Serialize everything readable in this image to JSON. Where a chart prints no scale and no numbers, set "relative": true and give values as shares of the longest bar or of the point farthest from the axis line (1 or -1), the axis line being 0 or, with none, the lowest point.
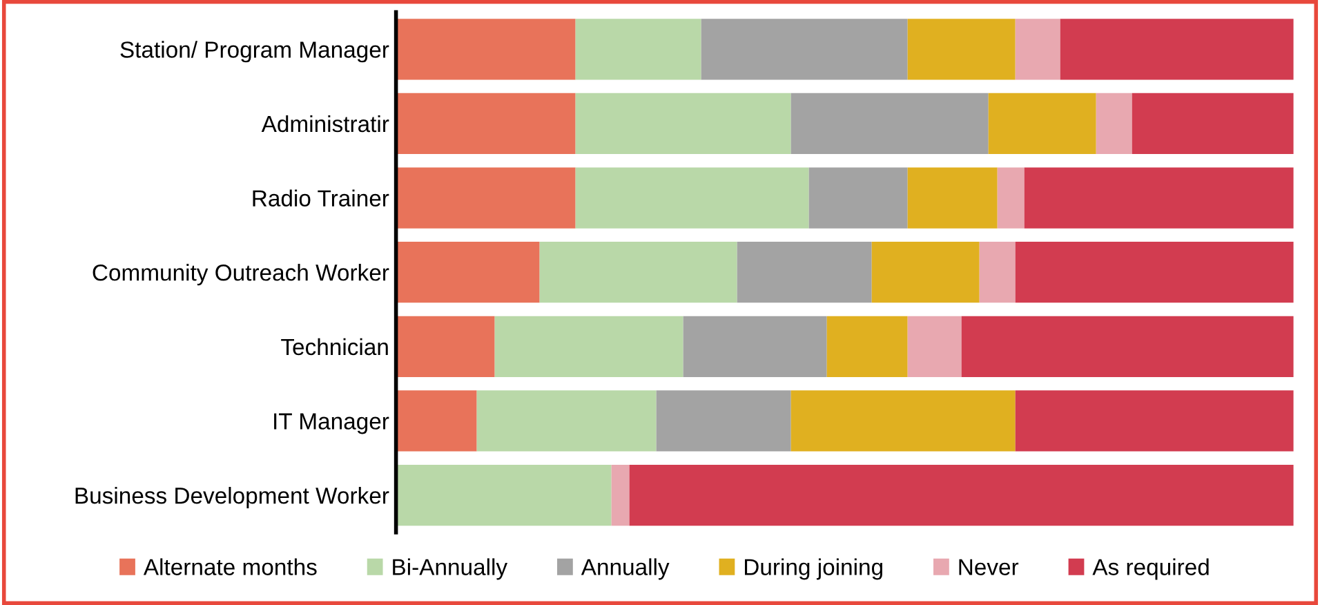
{
  "chart_data": {
    "type": "bar",
    "orientation": "horizontal",
    "stacked": true,
    "relative": true,
    "legend": "bottom",
    "grid": false,
    "categories": [
      "Station/ Program Manager",
      "Administratir",
      "Radio Trainer",
      "Community Outreach Worker",
      "Technician",
      "IT Manager",
      "Business Development Worker"
    ],
    "series": [
      {
        "name": "Alternate months",
        "color": "#e8735a",
        "values": [
          0.2,
          0.2,
          0.2,
          0.16,
          0.11,
          0.09,
          0
        ]
      },
      {
        "name": "Bi-Annually",
        "color": "#b9d8a8",
        "values": [
          0.14,
          0.24,
          0.26,
          0.22,
          0.21,
          0.2,
          0.24
        ]
      },
      {
        "name": "Annually",
        "color": "#a3a3a3",
        "values": [
          0.23,
          0.22,
          0.11,
          0.15,
          0.16,
          0.15,
          0
        ]
      },
      {
        "name": "During joining",
        "color": "#e0b020",
        "values": [
          0.12,
          0.12,
          0.1,
          0.12,
          0.09,
          0.25,
          0
        ]
      },
      {
        "name": "Never",
        "color": "#e8a8b0",
        "values": [
          0.05,
          0.04,
          0.03,
          0.04,
          0.06,
          0,
          0.02
        ]
      },
      {
        "name": "As required",
        "color": "#d23c50",
        "values": [
          0.26,
          0.18,
          0.3,
          0.31,
          0.37,
          0.31,
          0.74
        ]
      }
    ]
  }
}
